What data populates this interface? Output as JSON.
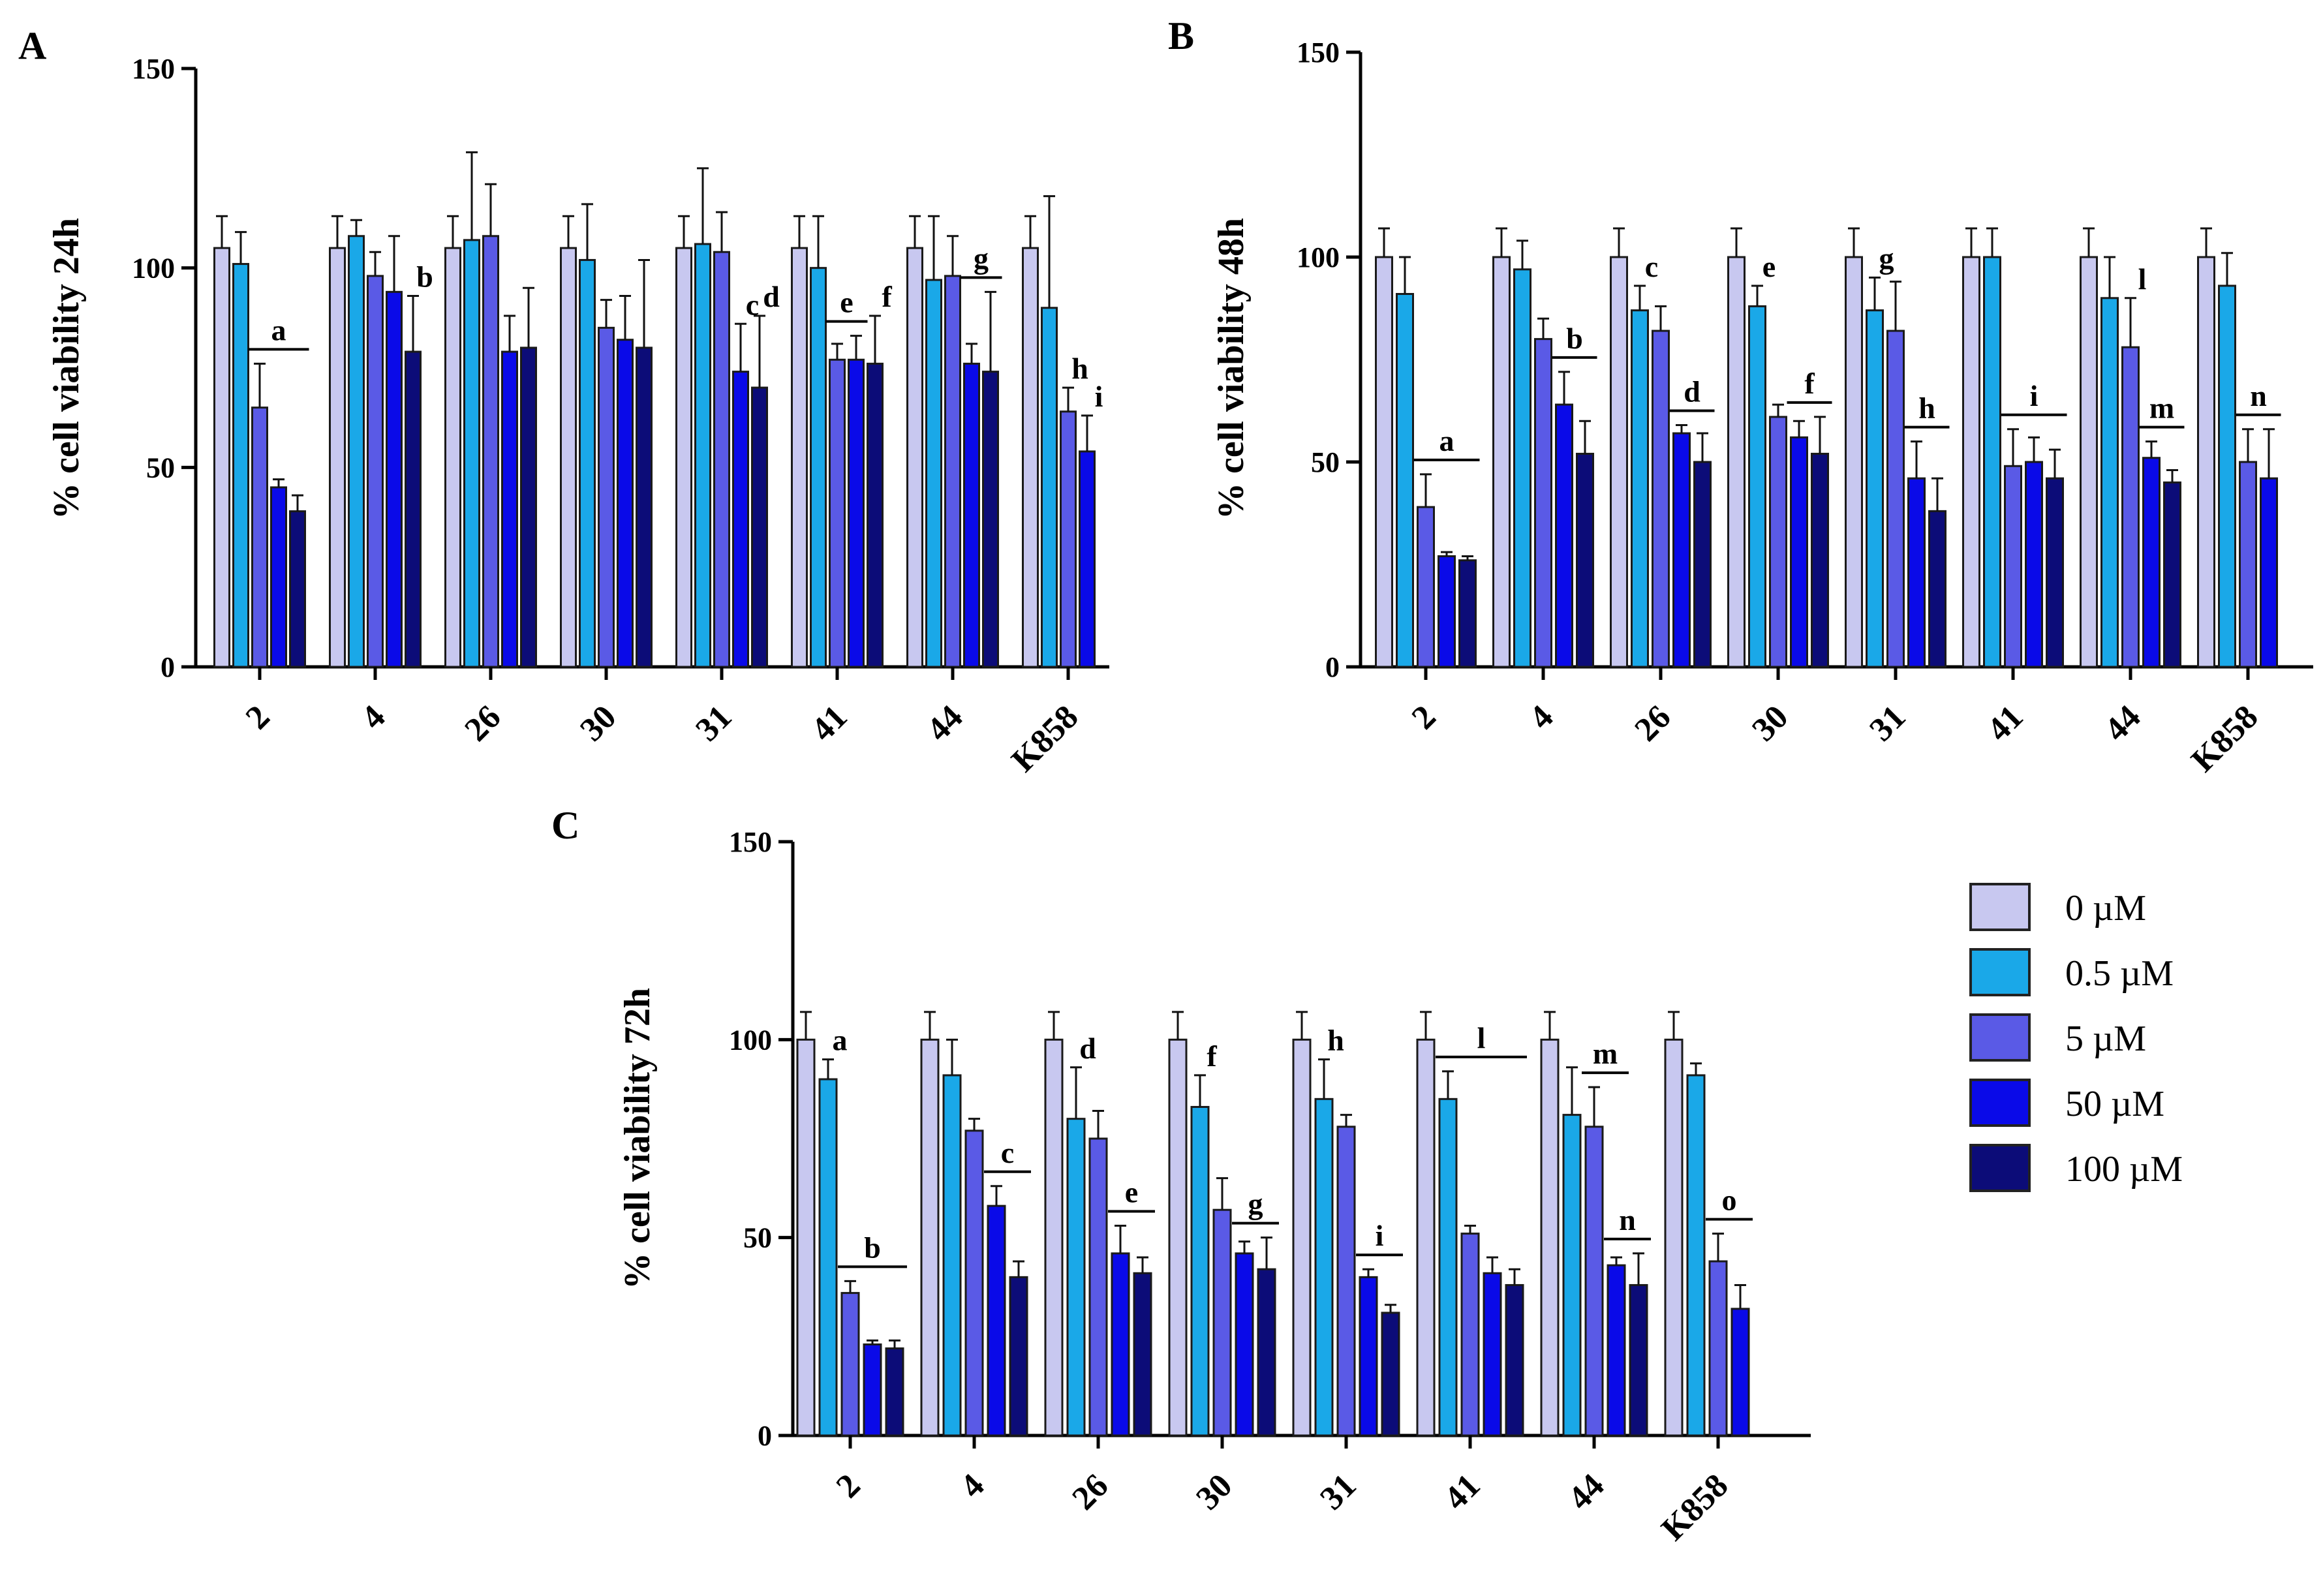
{
  "chart_data": [
    {
      "id": "A",
      "panel_label": "A",
      "type": "bar",
      "ylabel": "% cell viability 24h",
      "ylim": [
        0,
        150
      ],
      "yticks": [
        "0",
        "50",
        "100",
        "150"
      ],
      "categories": [
        "2",
        "4",
        "26",
        "30",
        "31",
        "41",
        "44",
        "K858"
      ],
      "series": [
        {
          "name": "0 µM",
          "values": [
            105,
            105,
            105,
            105,
            105,
            105,
            105,
            105
          ],
          "errors": [
            8,
            8,
            8,
            8,
            8,
            8,
            8,
            8
          ]
        },
        {
          "name": "0.5 µM",
          "values": [
            101,
            108,
            107,
            102,
            106,
            100,
            97,
            90
          ],
          "errors": [
            8,
            4,
            22,
            14,
            19,
            13,
            16,
            28
          ]
        },
        {
          "name": "5 µM",
          "values": [
            65,
            98,
            108,
            85,
            104,
            77,
            98,
            64
          ],
          "errors": [
            11,
            6,
            13,
            7,
            10,
            4,
            10,
            6
          ]
        },
        {
          "name": "50 µM",
          "values": [
            45,
            94,
            79,
            82,
            74,
            77,
            76,
            54
          ],
          "errors": [
            2,
            14,
            9,
            11,
            12,
            6,
            5,
            9
          ]
        },
        {
          "name": "100 µM",
          "values": [
            39,
            79,
            80,
            80,
            70,
            76,
            74,
            0
          ],
          "errors": [
            4,
            14,
            15,
            22,
            18,
            12,
            20,
            0
          ]
        }
      ],
      "annotations": [
        {
          "text": "a",
          "category": "2",
          "from_series": 2,
          "to_series": 4,
          "bar": true
        },
        {
          "text": "b",
          "category": "4",
          "series": 4,
          "bar": false
        },
        {
          "text": "c",
          "category": "31",
          "series": 3,
          "bar": false
        },
        {
          "text": "d",
          "category": "31",
          "series": 4,
          "bar": false
        },
        {
          "text": "e",
          "category": "41",
          "from_series": 2,
          "to_series": 3,
          "bar": true
        },
        {
          "text": "f",
          "category": "41",
          "series": 4,
          "bar": false
        },
        {
          "text": "g",
          "category": "44",
          "from_series": 3,
          "to_series": 4,
          "bar": true
        },
        {
          "text": "h",
          "category": "K858",
          "series": 2,
          "bar": false
        },
        {
          "text": "i",
          "category": "K858",
          "series": 3,
          "bar": false
        }
      ]
    },
    {
      "id": "B",
      "panel_label": "B",
      "type": "bar",
      "ylabel": "% cell viability 48h",
      "ylim": [
        0,
        150
      ],
      "yticks": [
        "0",
        "50",
        "100",
        "150"
      ],
      "categories": [
        "2",
        "4",
        "26",
        "30",
        "31",
        "41",
        "44",
        "K858"
      ],
      "series": [
        {
          "name": "0 µM",
          "values": [
            100,
            100,
            100,
            100,
            100,
            100,
            100,
            100
          ],
          "errors": [
            7,
            7,
            7,
            7,
            7,
            7,
            7,
            7
          ]
        },
        {
          "name": "0.5 µM",
          "values": [
            91,
            97,
            87,
            88,
            87,
            100,
            90,
            93
          ],
          "errors": [
            9,
            7,
            6,
            5,
            8,
            7,
            10,
            8
          ]
        },
        {
          "name": "5 µM",
          "values": [
            39,
            80,
            82,
            61,
            82,
            49,
            78,
            50
          ],
          "errors": [
            8,
            5,
            6,
            3,
            12,
            9,
            12,
            8
          ]
        },
        {
          "name": "50 µM",
          "values": [
            27,
            64,
            57,
            56,
            46,
            50,
            51,
            46
          ],
          "errors": [
            1,
            8,
            2,
            4,
            9,
            6,
            4,
            12
          ]
        },
        {
          "name": "100 µM",
          "values": [
            26,
            52,
            50,
            52,
            38,
            46,
            45,
            0
          ],
          "errors": [
            1,
            8,
            7,
            9,
            8,
            7,
            3,
            0
          ]
        }
      ],
      "annotations": [
        {
          "text": "a",
          "category": "2",
          "from_series": 2,
          "to_series": 4,
          "bar": true
        },
        {
          "text": "b",
          "category": "4",
          "from_series": 3,
          "to_series": 4,
          "bar": true
        },
        {
          "text": "c",
          "category": "26",
          "series": 1,
          "bar": false
        },
        {
          "text": "d",
          "category": "26",
          "from_series": 3,
          "to_series": 4,
          "bar": true
        },
        {
          "text": "e",
          "category": "30",
          "series": 1,
          "bar": false
        },
        {
          "text": "f",
          "category": "30",
          "from_series": 3,
          "to_series": 4,
          "bar": true
        },
        {
          "text": "g",
          "category": "31",
          "series": 1,
          "bar": false
        },
        {
          "text": "h",
          "category": "31",
          "from_series": 3,
          "to_series": 4,
          "bar": true
        },
        {
          "text": "i",
          "category": "41",
          "from_series": 2,
          "to_series": 4,
          "bar": true
        },
        {
          "text": "l",
          "category": "44",
          "series": 2,
          "bar": false
        },
        {
          "text": "m",
          "category": "44",
          "from_series": 3,
          "to_series": 4,
          "bar": true
        },
        {
          "text": "n",
          "category": "K858",
          "from_series": 2,
          "to_series": 3,
          "bar": true
        }
      ]
    },
    {
      "id": "C",
      "panel_label": "C",
      "type": "bar",
      "ylabel": "% cell viability 72h",
      "ylim": [
        0,
        150
      ],
      "yticks": [
        "0",
        "50",
        "100",
        "150"
      ],
      "categories": [
        "2",
        "4",
        "26",
        "30",
        "31",
        "41",
        "44",
        "K858"
      ],
      "series": [
        {
          "name": "0 µM",
          "values": [
            100,
            100,
            100,
            100,
            100,
            100,
            100,
            100
          ],
          "errors": [
            7,
            7,
            7,
            7,
            7,
            7,
            7,
            7
          ]
        },
        {
          "name": "0.5 µM",
          "values": [
            90,
            91,
            80,
            83,
            85,
            85,
            81,
            91
          ],
          "errors": [
            5,
            9,
            13,
            8,
            10,
            7,
            12,
            3
          ]
        },
        {
          "name": "5 µM",
          "values": [
            36,
            77,
            75,
            57,
            78,
            51,
            78,
            44
          ],
          "errors": [
            3,
            3,
            7,
            8,
            3,
            2,
            10,
            7
          ]
        },
        {
          "name": "50 µM",
          "values": [
            23,
            58,
            46,
            46,
            40,
            41,
            43,
            32
          ],
          "errors": [
            1,
            5,
            7,
            3,
            2,
            4,
            2,
            6
          ]
        },
        {
          "name": "100 µM",
          "values": [
            22,
            40,
            41,
            42,
            31,
            38,
            38,
            0
          ],
          "errors": [
            2,
            4,
            4,
            8,
            2,
            4,
            8,
            0
          ]
        }
      ],
      "annotations": [
        {
          "text": "a",
          "category": "2",
          "series": 1,
          "bar": false
        },
        {
          "text": "b",
          "category": "2",
          "from_series": 2,
          "to_series": 4,
          "bar": true
        },
        {
          "text": "c",
          "category": "4",
          "from_series": 3,
          "to_series": 4,
          "bar": true
        },
        {
          "text": "d",
          "category": "26",
          "series": 1,
          "bar": false
        },
        {
          "text": "e",
          "category": "26",
          "from_series": 3,
          "to_series": 4,
          "bar": true
        },
        {
          "text": "f",
          "category": "30",
          "series": 1,
          "bar": false
        },
        {
          "text": "g",
          "category": "30",
          "from_series": 3,
          "to_series": 4,
          "bar": true
        },
        {
          "text": "h",
          "category": "31",
          "series": 1,
          "bar": false
        },
        {
          "text": "i",
          "category": "31",
          "from_series": 3,
          "to_series": 4,
          "bar": true
        },
        {
          "text": "l",
          "category": "41",
          "from_series": 1,
          "to_series": 4,
          "bar": true
        },
        {
          "text": "m",
          "category": "44",
          "from_series": 2,
          "to_series": 3,
          "bar": true
        },
        {
          "text": "n",
          "category": "44",
          "from_series": 3,
          "to_series": 4,
          "bar": true
        },
        {
          "text": "o",
          "category": "K858",
          "from_series": 2,
          "to_series": 3,
          "bar": true
        }
      ]
    }
  ],
  "legend": [
    {
      "label": "0 µM",
      "color": "#c8c8f0"
    },
    {
      "label": "0.5 µM",
      "color": "#1aa8e8"
    },
    {
      "label": "5 µM",
      "color": "#5a5ae6"
    },
    {
      "label": "50 µM",
      "color": "#0a0ae8"
    },
    {
      "label": "100 µM",
      "color": "#0c0c78"
    }
  ],
  "colors": [
    "#c8c8f0",
    "#1aa8e8",
    "#5a5ae6",
    "#0a0ae8",
    "#0c0c78"
  ]
}
